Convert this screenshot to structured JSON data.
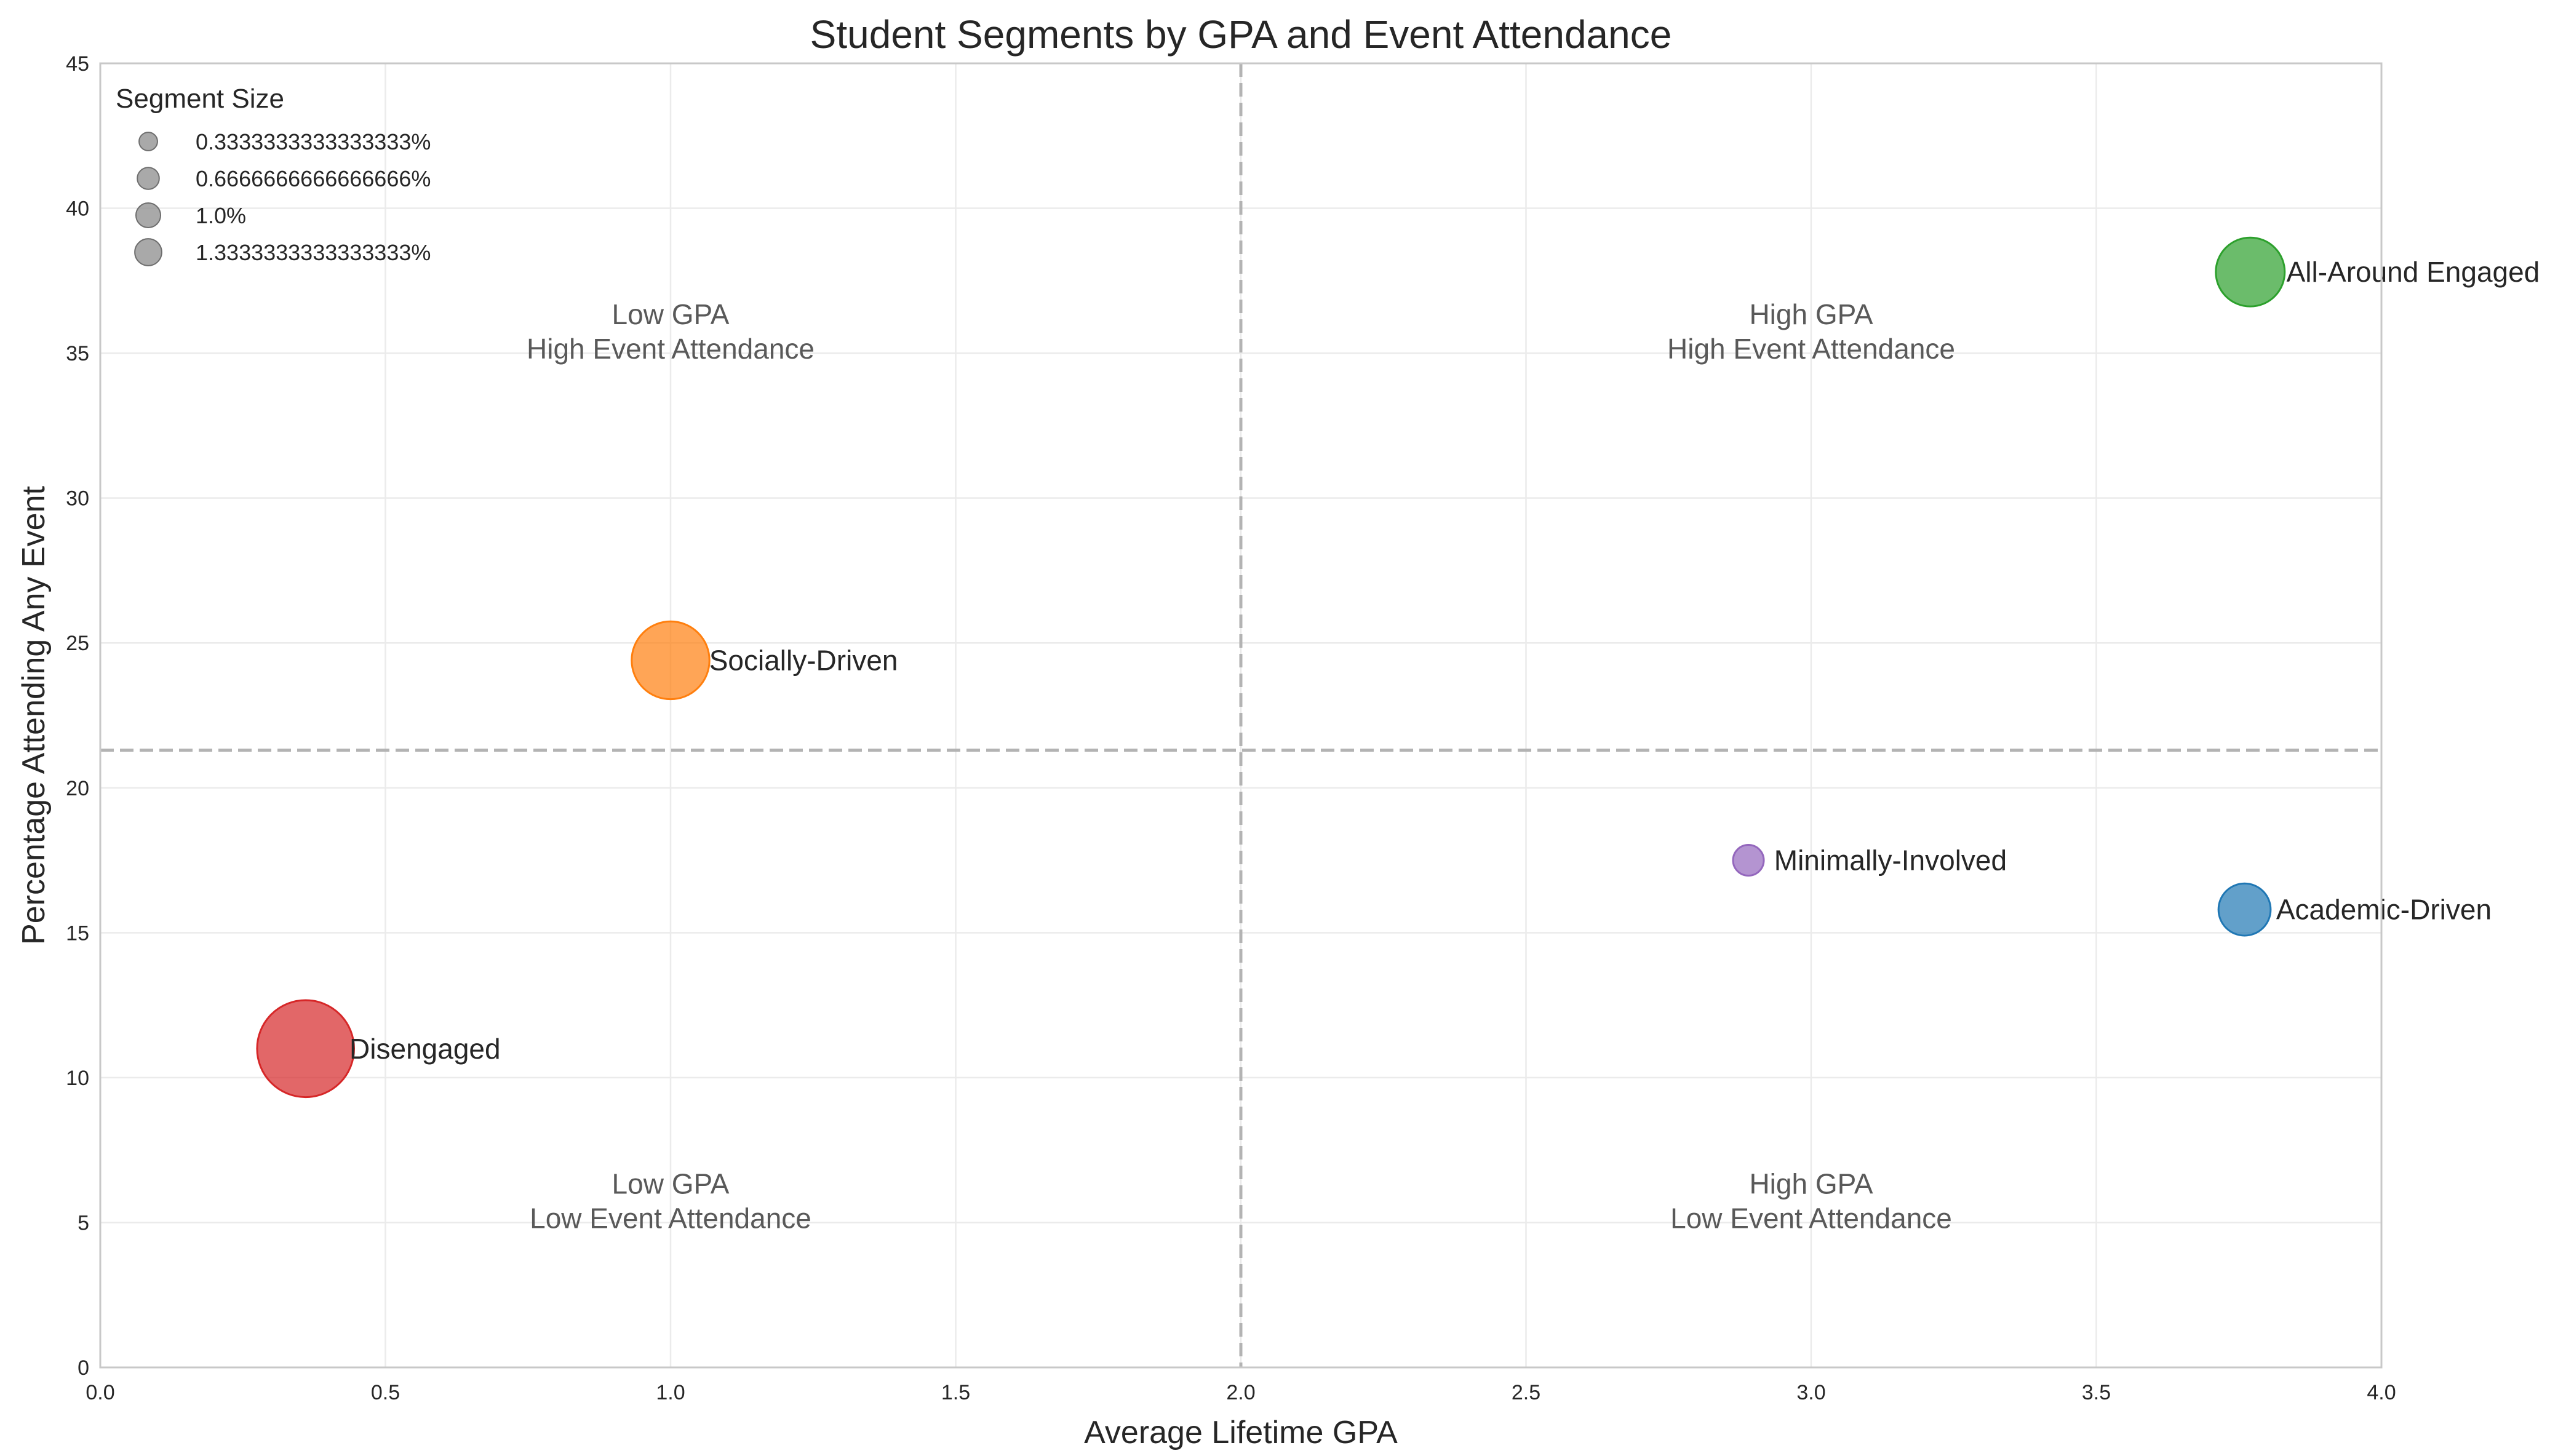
{
  "chart_data": {
    "type": "scatter",
    "title": "Student Segments by GPA and Event Attendance",
    "xlabel": "Average Lifetime GPA",
    "ylabel": "Percentage Attending Any Event",
    "xlim": [
      0,
      4
    ],
    "ylim": [
      0,
      45
    ],
    "xticks": [
      "0.0",
      "0.5",
      "1.0",
      "1.5",
      "2.0",
      "2.5",
      "3.0",
      "3.5",
      "4.0"
    ],
    "yticks": [
      "0",
      "5",
      "10",
      "15",
      "20",
      "25",
      "30",
      "35",
      "40",
      "45"
    ],
    "grid": true,
    "x_threshold": 2.0,
    "y_threshold": 21.3,
    "points": [
      {
        "label": "All-Around Engaged",
        "x": 3.77,
        "y": 37.8,
        "size": 0.9,
        "color": "#2ca02c"
      },
      {
        "label": "Socially-Driven",
        "x": 1.0,
        "y": 24.4,
        "size": 1.2,
        "color": "#ff7f0e"
      },
      {
        "label": "Minimally-Involved",
        "x": 2.89,
        "y": 17.5,
        "size": 0.1,
        "color": "#9467bd"
      },
      {
        "label": "Academic-Driven",
        "x": 3.76,
        "y": 15.8,
        "size": 0.45,
        "color": "#1f77b4"
      },
      {
        "label": "Disengaged",
        "x": 0.36,
        "y": 11.0,
        "size": 2.0,
        "color": "#d62728"
      }
    ],
    "quadrant_labels": [
      {
        "line1": "Low GPA",
        "line2": "High Event Attendance",
        "x": 1.0,
        "y": 35.7
      },
      {
        "line1": "High GPA",
        "line2": "High Event Attendance",
        "x": 3.0,
        "y": 35.7
      },
      {
        "line1": "Low GPA",
        "line2": "Low Event Attendance",
        "x": 1.0,
        "y": 5.7
      },
      {
        "line1": "High GPA",
        "line2": "Low Event Attendance",
        "x": 3.0,
        "y": 5.7
      }
    ],
    "legend": {
      "title": "Segment Size",
      "placement": "top-left",
      "color": "#8c8c8c",
      "entries": [
        {
          "label": "0.3333333333333333%",
          "size": 0.3333333333333333
        },
        {
          "label": "0.6666666666666666%",
          "size": 0.6666666666666666
        },
        {
          "label": "1.0%",
          "size": 1.0
        },
        {
          "label": "1.3333333333333333%",
          "size": 1.3333333333333333
        }
      ]
    }
  }
}
